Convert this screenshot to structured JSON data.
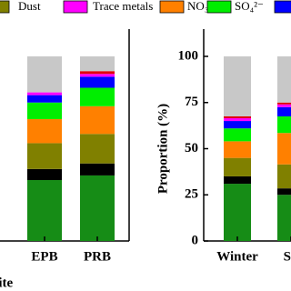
{
  "chart_data": [
    {
      "type": "bar",
      "stacked": true,
      "x_label": "Site",
      "categories": [
        "EPB",
        "PRB"
      ],
      "ylim": [
        0,
        100
      ],
      "series": [
        {
          "color": "#168c16",
          "values": [
            33,
            35.5
          ]
        },
        {
          "color": "#000000",
          "values": [
            6,
            6.5
          ]
        },
        {
          "name": "Dust",
          "color": "#808000",
          "values": [
            14,
            16
          ]
        },
        {
          "name": "NO₃⁻",
          "color": "#ff8000",
          "values": [
            13,
            15
          ]
        },
        {
          "name": "SO₄²⁻",
          "color": "#00ee00",
          "values": [
            9,
            10
          ]
        },
        {
          "color": "#0000ff",
          "values": [
            4,
            6
          ]
        },
        {
          "name": "Trace metals",
          "color": "#ff00ff",
          "values": [
            1.5,
            1.5
          ]
        },
        {
          "color": "#e00000",
          "values": [
            0,
            1.5
          ]
        },
        {
          "color": "#c8c8c8",
          "values": [
            19.5,
            8
          ]
        }
      ]
    },
    {
      "type": "bar",
      "stacked": true,
      "y_label": "Proportion (%)",
      "categories": [
        "Winter",
        "Sp"
      ],
      "ylim": [
        0,
        100
      ],
      "yticks": [
        0,
        25,
        50,
        75,
        100
      ],
      "series": [
        {
          "color": "#168c16",
          "values": [
            31,
            25
          ]
        },
        {
          "color": "#000000",
          "values": [
            4,
            3.5
          ]
        },
        {
          "color": "#808000",
          "values": [
            10,
            13
          ]
        },
        {
          "color": "#ff8000",
          "values": [
            9,
            17
          ]
        },
        {
          "color": "#00ee00",
          "values": [
            7,
            9
          ]
        },
        {
          "color": "#0000ff",
          "values": [
            4,
            5
          ]
        },
        {
          "color": "#ff00ff",
          "values": [
            1.5,
            1.5
          ]
        },
        {
          "color": "#e00000",
          "values": [
            1,
            1
          ]
        },
        {
          "color": "#c8c8c8",
          "values": [
            32.5,
            25
          ]
        }
      ]
    }
  ]
}
